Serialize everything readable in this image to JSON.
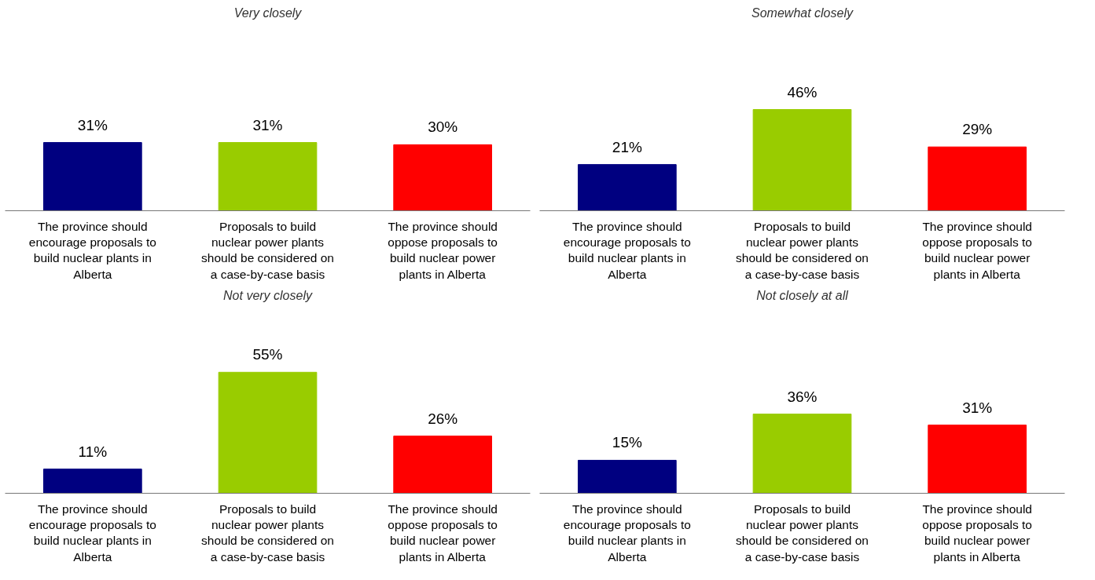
{
  "chart_data": [
    {
      "type": "bar",
      "title": "Very closely",
      "categories": [
        "The province should encourage proposals to build nuclear plants in Alberta",
        "Proposals to build nuclear power plants should be considered on a case-by-case basis",
        "The province should oppose proposals to build nuclear power plants in Alberta"
      ],
      "values": [
        31,
        31,
        30
      ],
      "value_labels": [
        "31%",
        "31%",
        "30%"
      ],
      "colors": [
        "#000080",
        "#99cc00",
        "#ff0000"
      ],
      "grid": false
    },
    {
      "type": "bar",
      "title": "Somewhat closely",
      "categories": [
        "The province should encourage proposals to build nuclear plants in Alberta",
        "Proposals to build nuclear power plants should be considered on a case-by-case basis",
        "The province should oppose proposals to build nuclear power plants in Alberta"
      ],
      "values": [
        21,
        46,
        29
      ],
      "value_labels": [
        "21%",
        "46%",
        "29%"
      ],
      "colors": [
        "#000080",
        "#99cc00",
        "#ff0000"
      ],
      "grid": false
    },
    {
      "type": "bar",
      "title": "Not very closely",
      "categories": [
        "The province should encourage proposals to build nuclear plants in Alberta",
        "Proposals to build nuclear power plants should be considered on a case-by-case basis",
        "The province should oppose proposals to build nuclear power plants in Alberta"
      ],
      "values": [
        11,
        55,
        26
      ],
      "value_labels": [
        "11%",
        "55%",
        "26%"
      ],
      "colors": [
        "#000080",
        "#99cc00",
        "#ff0000"
      ],
      "grid": false
    },
    {
      "type": "bar",
      "title": "Not closely at all",
      "categories": [
        "The province should encourage proposals to build nuclear plants in Alberta",
        "Proposals to build nuclear power plants should be considered on a case-by-case basis",
        "The province should oppose proposals to build nuclear power plants in Alberta"
      ],
      "values": [
        15,
        36,
        31
      ],
      "value_labels": [
        "15%",
        "36%",
        "31%"
      ],
      "colors": [
        "#000080",
        "#99cc00",
        "#ff0000"
      ],
      "grid": false
    }
  ]
}
